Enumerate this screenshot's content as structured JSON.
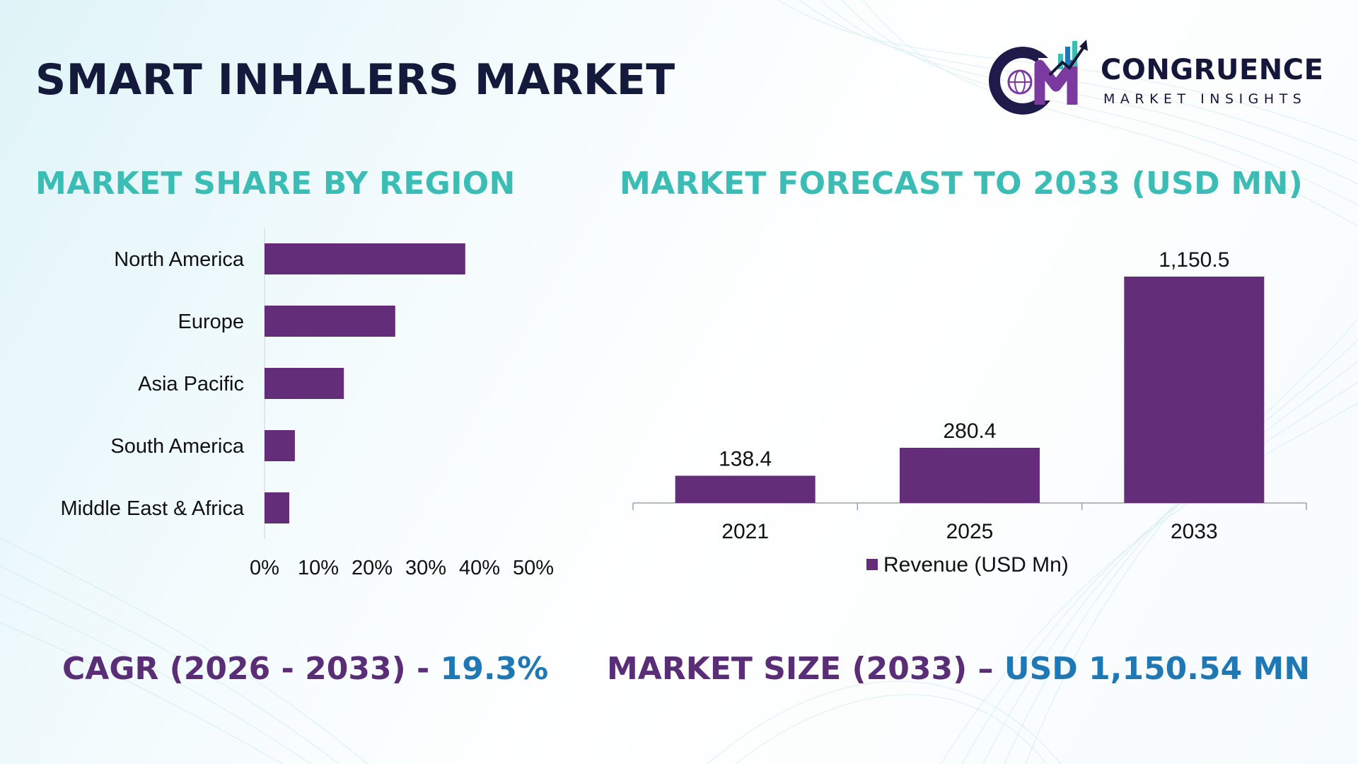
{
  "title": "SMART INHALERS MARKET",
  "logo": {
    "name": "CONGRUENCE",
    "tagline": "MARKET INSIGHTS",
    "letters": "CM"
  },
  "colors": {
    "bar": "#632d79",
    "section_title": "#3bbdb6",
    "main_title": "#141a3c",
    "stat_label": "#5a2d77",
    "stat_value": "#1f78b4"
  },
  "left_section_title": "MARKET SHARE BY REGION",
  "right_section_title": "MARKET FORECAST TO 2033 (USD MN)",
  "chart_data": [
    {
      "type": "bar",
      "orientation": "horizontal",
      "categories": [
        "North America",
        "Europe",
        "Asia Pacific",
        "South America",
        "Middle East & Africa"
      ],
      "values": [
        43,
        28,
        17,
        6.5,
        5.3
      ],
      "unit": "%",
      "xlim": [
        0,
        50
      ],
      "x_ticks": [
        "0%",
        "10%",
        "20%",
        "30%",
        "40%",
        "50%"
      ],
      "grid": false
    },
    {
      "type": "bar",
      "orientation": "vertical",
      "categories": [
        "2021",
        "2025",
        "2033"
      ],
      "values": [
        138.4,
        280.4,
        1150.5
      ],
      "value_labels": [
        "138.4",
        "280.4",
        "1,150.5"
      ],
      "series": [
        {
          "name": "Revenue (USD Mn)",
          "values": [
            138.4,
            280.4,
            1150.5
          ]
        }
      ],
      "ylim": [
        0,
        1150.5
      ],
      "legend_placement": "bottom",
      "grid": false
    }
  ],
  "stats": {
    "cagr_label": "CAGR (2026 - 2033) - ",
    "cagr_value": "19.3%",
    "size_label": "MARKET SIZE (2033) – ",
    "size_value": "USD 1,150.54 MN"
  }
}
